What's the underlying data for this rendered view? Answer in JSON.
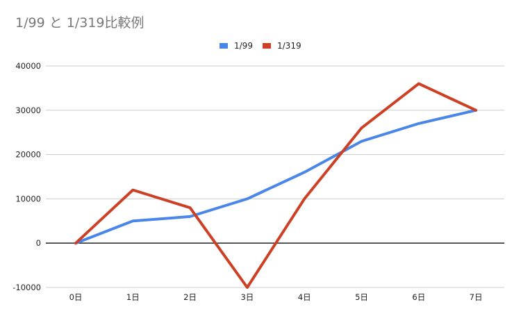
{
  "chart_data": {
    "type": "line",
    "title": "1/99 と 1/319比較例",
    "categories": [
      "0日",
      "1日",
      "2日",
      "3日",
      "4日",
      "5日",
      "6日",
      "7日"
    ],
    "series": [
      {
        "name": "1/99",
        "color": "#4a86e8",
        "values": [
          0,
          5000,
          6000,
          10000,
          16000,
          23000,
          27000,
          30000
        ]
      },
      {
        "name": "1/319",
        "color": "#cc4125",
        "values": [
          0,
          12000,
          8000,
          -10000,
          10000,
          26000,
          36000,
          30000
        ]
      }
    ],
    "ylim": [
      -10000,
      40000
    ],
    "yticks": [
      "40000",
      "30000",
      "20000",
      "10000",
      "0",
      "-10000"
    ],
    "ytick_values": [
      40000,
      30000,
      20000,
      10000,
      0,
      -10000
    ],
    "grid": true,
    "legend_position": "top"
  }
}
